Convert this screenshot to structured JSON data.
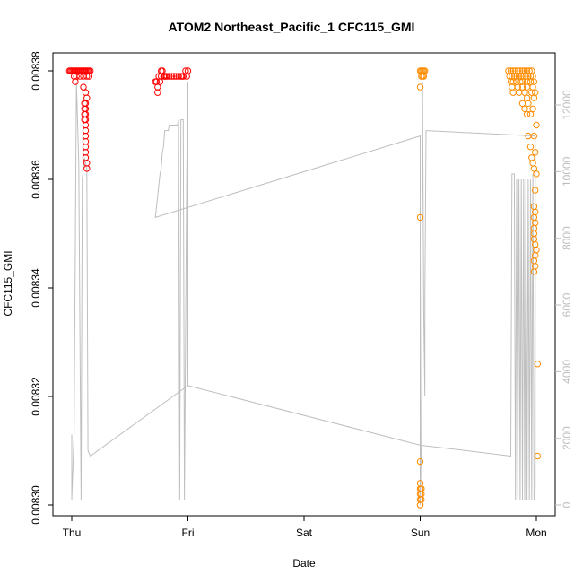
{
  "chart_data": {
    "type": "scatter",
    "title": "ATOM2 Northeast_Pacific_1 CFC115_GMI",
    "xlabel": "Date",
    "ylabel": "CFC115_GMI",
    "x_ticks": [
      "Thu",
      "Fri",
      "Sat",
      "Sun",
      "Mon"
    ],
    "y_ticks": [
      "0.00830",
      "0.00832",
      "0.00834",
      "0.00836",
      "0.00838"
    ],
    "y2_ticks": [
      "0",
      "2000",
      "4000",
      "6000",
      "8000",
      "10000",
      "12000"
    ],
    "xlim": [
      0,
      4.1
    ],
    "ylim": [
      0.008298,
      0.008382
    ],
    "y2lim": [
      -350,
      13100
    ],
    "colors": {
      "series_red": "#ff0000",
      "series_orange": "#ff8c00",
      "altitude_line": "#bfbfbf",
      "axis": "#000000",
      "right_axis": "#bdbdbd"
    },
    "series": [
      {
        "color": "red",
        "points": [
          [
            -0.02,
            0.00838
          ],
          [
            -0.01,
            0.00838
          ],
          [
            0.0,
            0.00838
          ],
          [
            0.01,
            0.00838
          ],
          [
            0.02,
            0.00838
          ],
          [
            0.03,
            0.00838
          ],
          [
            0.04,
            0.00838
          ],
          [
            0.05,
            0.00838
          ],
          [
            0.06,
            0.00838
          ],
          [
            0.07,
            0.00838
          ],
          [
            0.08,
            0.00838
          ],
          [
            0.09,
            0.00838
          ],
          [
            0.1,
            0.00838
          ],
          [
            0.11,
            0.00838
          ],
          [
            0.12,
            0.00838
          ],
          [
            0.13,
            0.00838
          ],
          [
            0.14,
            0.00838
          ],
          [
            0.15,
            0.00838
          ],
          [
            0.16,
            0.00838
          ],
          [
            0.02,
            0.008379
          ],
          [
            0.03,
            0.008378
          ],
          [
            0.04,
            0.008379
          ],
          [
            0.07,
            0.008379
          ],
          [
            0.1,
            0.008379
          ],
          [
            0.13,
            0.008379
          ],
          [
            0.15,
            0.008379
          ],
          [
            0.1,
            0.008377
          ],
          [
            0.12,
            0.008376
          ],
          [
            0.13,
            0.008375
          ],
          [
            0.12,
            0.008374
          ],
          [
            0.11,
            0.008374
          ],
          [
            0.12,
            0.008373
          ],
          [
            0.11,
            0.008373
          ],
          [
            0.12,
            0.008372
          ],
          [
            0.11,
            0.008372
          ],
          [
            0.12,
            0.008371
          ],
          [
            0.11,
            0.008371
          ],
          [
            0.12,
            0.00837
          ],
          [
            0.12,
            0.008369
          ],
          [
            0.12,
            0.008368
          ],
          [
            0.12,
            0.008367
          ],
          [
            0.12,
            0.008366
          ],
          [
            0.12,
            0.008365
          ],
          [
            0.12,
            0.008364
          ],
          [
            0.13,
            0.008363
          ],
          [
            0.13,
            0.008362
          ],
          [
            0.72,
            0.008378
          ],
          [
            0.73,
            0.008378
          ],
          [
            0.74,
            0.008377
          ],
          [
            0.74,
            0.008376
          ],
          [
            0.75,
            0.008379
          ],
          [
            0.76,
            0.008378
          ],
          [
            0.77,
            0.00838
          ],
          [
            0.78,
            0.00838
          ],
          [
            0.79,
            0.008379
          ],
          [
            0.8,
            0.008379
          ],
          [
            0.81,
            0.008379
          ],
          [
            0.82,
            0.008379
          ],
          [
            0.84,
            0.008379
          ],
          [
            0.86,
            0.008379
          ],
          [
            0.88,
            0.008379
          ],
          [
            0.9,
            0.008379
          ],
          [
            0.92,
            0.008379
          ],
          [
            0.94,
            0.008379
          ],
          [
            0.96,
            0.008379
          ],
          [
            0.98,
            0.00838
          ],
          [
            1.0,
            0.00838
          ],
          [
            0.99,
            0.008379
          ],
          [
            0.95,
            0.008379
          ],
          [
            0.77,
            0.008379
          ]
        ]
      },
      {
        "color": "orange",
        "points": [
          [
            3.0,
            0.00838
          ],
          [
            3.01,
            0.00838
          ],
          [
            3.02,
            0.00838
          ],
          [
            3.03,
            0.00838
          ],
          [
            3.04,
            0.00838
          ],
          [
            3.02,
            0.008379
          ],
          [
            3.01,
            0.008379
          ],
          [
            3.03,
            0.008379
          ],
          [
            3.0,
            0.008377
          ],
          [
            3.0,
            0.008353
          ],
          [
            3.0,
            0.008308
          ],
          [
            3.0,
            0.008301
          ],
          [
            3.0,
            0.0083
          ],
          [
            3.01,
            0.008302
          ],
          [
            3.0,
            0.008302
          ],
          [
            3.01,
            0.008303
          ],
          [
            3.0,
            0.008303
          ],
          [
            3.01,
            0.008303
          ],
          [
            3.0,
            0.008304
          ],
          [
            3.01,
            0.008301
          ],
          [
            3.0,
            0.0083
          ],
          [
            3.76,
            0.00838
          ],
          [
            3.78,
            0.00838
          ],
          [
            3.8,
            0.00838
          ],
          [
            3.82,
            0.00838
          ],
          [
            3.84,
            0.00838
          ],
          [
            3.86,
            0.00838
          ],
          [
            3.88,
            0.00838
          ],
          [
            3.9,
            0.00838
          ],
          [
            3.92,
            0.00838
          ],
          [
            3.94,
            0.00838
          ],
          [
            3.96,
            0.00838
          ],
          [
            3.77,
            0.008379
          ],
          [
            3.79,
            0.008379
          ],
          [
            3.81,
            0.008379
          ],
          [
            3.83,
            0.008379
          ],
          [
            3.85,
            0.008379
          ],
          [
            3.87,
            0.008379
          ],
          [
            3.89,
            0.008379
          ],
          [
            3.91,
            0.008379
          ],
          [
            3.93,
            0.008379
          ],
          [
            3.95,
            0.008379
          ],
          [
            3.97,
            0.008379
          ],
          [
            3.78,
            0.008378
          ],
          [
            3.8,
            0.008378
          ],
          [
            3.83,
            0.008378
          ],
          [
            3.86,
            0.008378
          ],
          [
            3.88,
            0.008378
          ],
          [
            3.92,
            0.008378
          ],
          [
            3.95,
            0.008378
          ],
          [
            3.98,
            0.008378
          ],
          [
            3.79,
            0.008377
          ],
          [
            3.84,
            0.008377
          ],
          [
            3.88,
            0.008377
          ],
          [
            3.92,
            0.008377
          ],
          [
            3.97,
            0.008377
          ],
          [
            3.8,
            0.008376
          ],
          [
            3.85,
            0.008376
          ],
          [
            3.9,
            0.008376
          ],
          [
            3.96,
            0.008376
          ],
          [
            3.99,
            0.008376
          ],
          [
            3.92,
            0.008375
          ],
          [
            3.98,
            0.008375
          ],
          [
            3.88,
            0.008374
          ],
          [
            3.93,
            0.008374
          ],
          [
            3.9,
            0.008373
          ],
          [
            3.97,
            0.008373
          ],
          [
            3.92,
            0.008372
          ],
          [
            3.95,
            0.008372
          ],
          [
            4.0,
            0.00837
          ],
          [
            3.93,
            0.008368
          ],
          [
            3.98,
            0.008368
          ],
          [
            3.95,
            0.008366
          ],
          [
            3.99,
            0.008365
          ],
          [
            3.96,
            0.008364
          ],
          [
            3.97,
            0.008363
          ],
          [
            3.98,
            0.008362
          ],
          [
            4.0,
            0.008361
          ],
          [
            3.99,
            0.008358
          ],
          [
            3.98,
            0.008355
          ],
          [
            3.99,
            0.008354
          ],
          [
            3.98,
            0.008353
          ],
          [
            3.99,
            0.008352
          ],
          [
            3.98,
            0.008351
          ],
          [
            3.98,
            0.00835
          ],
          [
            3.98,
            0.008349
          ],
          [
            3.99,
            0.008348
          ],
          [
            4.0,
            0.008347
          ],
          [
            3.99,
            0.008346
          ],
          [
            3.98,
            0.008345
          ],
          [
            3.99,
            0.008344
          ],
          [
            3.98,
            0.008343
          ],
          [
            4.01,
            0.008326
          ],
          [
            4.01,
            0.008309
          ]
        ]
      }
    ],
    "altitude_line": [
      [
        0.0,
        0.008313
      ],
      [
        0.0,
        0.008301
      ],
      [
        0.02,
        0.008313
      ],
      [
        0.04,
        0.008378
      ],
      [
        0.06,
        0.008363
      ],
      [
        0.08,
        0.008301
      ],
      [
        0.09,
        0.00836
      ],
      [
        0.11,
        0.008364
      ],
      [
        0.13,
        0.008362
      ],
      [
        0.14,
        0.00831
      ],
      [
        0.16,
        0.008309
      ],
      [
        1.0,
        0.008322
      ],
      [
        1.0,
        0.008378
      ],
      [
        0.99,
        0.008361
      ],
      [
        0.97,
        0.008301
      ],
      [
        0.96,
        0.008371
      ],
      [
        0.94,
        0.008371
      ],
      [
        0.93,
        0.008301
      ],
      [
        0.92,
        0.008371
      ],
      [
        0.91,
        0.00837
      ],
      [
        0.9,
        0.00837
      ],
      [
        0.84,
        0.00837
      ],
      [
        0.83,
        0.008369
      ],
      [
        0.8,
        0.008369
      ],
      [
        0.79,
        0.008366
      ],
      [
        0.78,
        0.008365
      ],
      [
        0.77,
        0.008362
      ],
      [
        0.76,
        0.008361
      ],
      [
        0.75,
        0.008359
      ],
      [
        0.74,
        0.008357
      ],
      [
        0.73,
        0.008355
      ],
      [
        0.72,
        0.008353
      ],
      [
        3.0,
        0.008368
      ],
      [
        3.0,
        0.0083
      ],
      [
        3.01,
        0.008312
      ],
      [
        3.02,
        0.008378
      ],
      [
        3.03,
        0.008336
      ],
      [
        3.04,
        0.00832
      ],
      [
        3.04,
        0.008338
      ],
      [
        3.05,
        0.008369
      ],
      [
        3.99,
        0.008368
      ],
      [
        3.99,
        0.008303
      ],
      [
        3.98,
        0.008301
      ],
      [
        3.97,
        0.008361
      ],
      [
        3.96,
        0.008301
      ],
      [
        3.95,
        0.00836
      ],
      [
        3.94,
        0.008301
      ],
      [
        3.93,
        0.00836
      ],
      [
        3.92,
        0.008301
      ],
      [
        3.91,
        0.00836
      ],
      [
        3.9,
        0.008301
      ],
      [
        3.89,
        0.00836
      ],
      [
        3.88,
        0.008301
      ],
      [
        3.87,
        0.00836
      ],
      [
        3.86,
        0.008301
      ],
      [
        3.85,
        0.00836
      ],
      [
        3.84,
        0.008301
      ],
      [
        3.83,
        0.00836
      ],
      [
        3.82,
        0.008301
      ],
      [
        3.81,
        0.008361
      ],
      [
        3.8,
        0.008361
      ],
      [
        3.79,
        0.008361
      ],
      [
        3.78,
        0.008309
      ],
      [
        3.4,
        0.00831
      ],
      [
        3.0,
        0.008311
      ],
      [
        1.0,
        0.008322
      ]
    ]
  }
}
